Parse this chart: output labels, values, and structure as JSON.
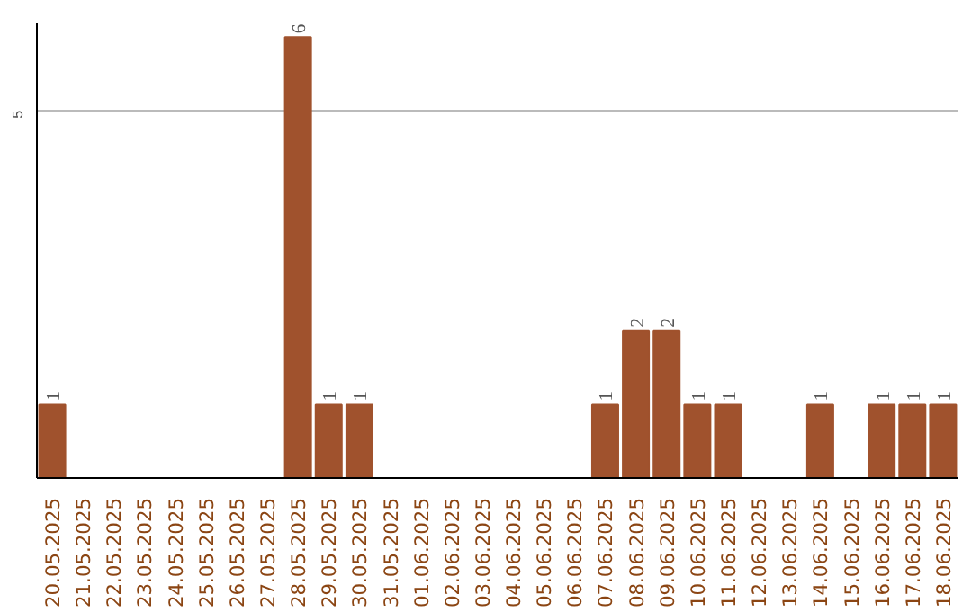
{
  "chart_data": {
    "type": "bar",
    "categories": [
      "20.05.2025",
      "21.05.2025",
      "22.05.2025",
      "23.05.2025",
      "24.05.2025",
      "25.05.2025",
      "26.05.2025",
      "27.05.2025",
      "28.05.2025",
      "29.05.2025",
      "30.05.2025",
      "31.05.2025",
      "01.06.2025",
      "02.06.2025",
      "03.06.2025",
      "04.06.2025",
      "05.06.2025",
      "06.06.2025",
      "07.06.2025",
      "08.06.2025",
      "09.06.2025",
      "10.06.2025",
      "11.06.2025",
      "12.06.2025",
      "13.06.2025",
      "14.06.2025",
      "15.06.2025",
      "16.06.2025",
      "17.06.2025",
      "18.06.2025"
    ],
    "values": [
      1,
      0,
      0,
      0,
      0,
      0,
      0,
      0,
      6,
      1,
      1,
      0,
      0,
      0,
      0,
      0,
      0,
      0,
      1,
      2,
      2,
      1,
      1,
      0,
      0,
      1,
      0,
      1,
      1,
      1
    ],
    "value_labels": [
      "1",
      null,
      null,
      null,
      null,
      null,
      null,
      null,
      "6",
      "1",
      "1",
      null,
      null,
      null,
      null,
      null,
      null,
      null,
      "1",
      "2",
      "2",
      "1",
      "1",
      null,
      null,
      "1",
      null,
      "1",
      "1",
      "1"
    ],
    "color": "#a0522d",
    "ylim": [
      0,
      6.2
    ],
    "yticks": [
      5
    ],
    "grid": "y"
  }
}
